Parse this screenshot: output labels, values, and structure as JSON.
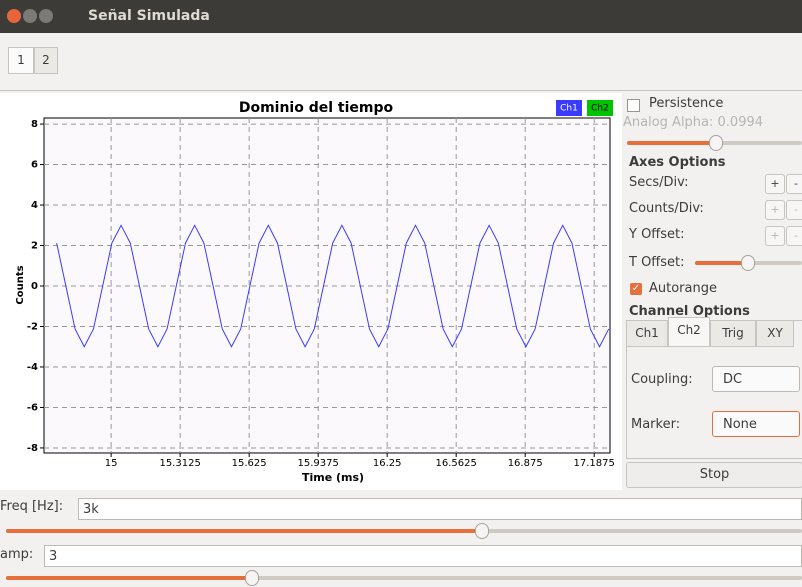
{
  "window": {
    "title": "Señal Simulada"
  },
  "tabs": [
    "1",
    "2"
  ],
  "chart_data": {
    "type": "line",
    "title": "Dominio del tiempo",
    "x_label": "Time (ms)",
    "y_label": "Counts",
    "x": [
      14.7533,
      14.795,
      14.8367,
      14.8783,
      14.92,
      14.9617,
      15.0033,
      15.045,
      15.0867,
      15.1283,
      15.17,
      15.2117,
      15.2533,
      15.295,
      15.3367,
      15.3783,
      15.42,
      15.4617,
      15.5033,
      15.545,
      15.5867,
      15.6283,
      15.67,
      15.7117,
      15.7533,
      15.795,
      15.8367,
      15.8783,
      15.92,
      15.9617,
      16.0033,
      16.045,
      16.0867,
      16.1283,
      16.17,
      16.2117,
      16.2533,
      16.295,
      16.3367,
      16.3783,
      16.42,
      16.4617,
      16.5033,
      16.545,
      16.5867,
      16.6283,
      16.67,
      16.7117,
      16.7533,
      16.795,
      16.8367,
      16.8783,
      16.92,
      16.9617,
      17.0033,
      17.045,
      17.0867,
      17.1283,
      17.17,
      17.2117,
      17.2533
    ],
    "series": [
      {
        "name": "Ch1",
        "color": "#3b3bff",
        "values": [
          2.12,
          0,
          -2.12,
          -3,
          -2.12,
          0,
          2.12,
          3,
          2.12,
          0,
          -2.12,
          -3,
          -2.12,
          0,
          2.12,
          3,
          2.12,
          0,
          -2.12,
          -3,
          -2.12,
          0,
          2.12,
          3,
          2.12,
          0,
          -2.12,
          -3,
          -2.12,
          0,
          2.12,
          3,
          2.12,
          0,
          -2.12,
          -3,
          -2.12,
          0,
          2.12,
          3,
          2.12,
          0,
          -2.12,
          -3,
          -2.12,
          0,
          2.12,
          3,
          2.12,
          0,
          -2.12,
          -3,
          -2.12,
          0,
          2.12,
          3,
          2.12,
          0,
          -2.12,
          -3,
          -2.12
        ]
      }
    ],
    "legend": [
      {
        "name": "Ch1",
        "color": "#3b3bff"
      },
      {
        "name": "Ch2",
        "color": "#00c400"
      }
    ],
    "xlim": [
      14.696,
      17.259
    ],
    "ylim": [
      -8.25,
      8.3
    ],
    "xticks": [
      15,
      15.3125,
      15.625,
      15.9375,
      16.25,
      16.5625,
      16.875,
      17.1875
    ],
    "yticks": [
      -8,
      -6,
      -4,
      -2,
      0,
      2,
      4,
      6,
      8
    ],
    "grid": true
  },
  "panel": {
    "persistence": "Persistence",
    "analog_alpha": "Analog Alpha: 0.0994",
    "axes_options": "Axes Options",
    "secs_div": "Secs/Div:",
    "counts_div": "Counts/Div:",
    "y_offset": "Y Offset:",
    "t_offset": "T Offset:",
    "autorange": "Autorange",
    "channel_options": "Channel Options",
    "channel_tabs": [
      "Ch1",
      "Ch2",
      "Trig",
      "XY"
    ],
    "coupling": "Coupling:",
    "coupling_value": "DC",
    "marker": "Marker:",
    "marker_value": "None",
    "stop": "Stop",
    "plus": "+",
    "minus": "-"
  },
  "controls": {
    "freq_label": "Freq [Hz]:",
    "freq_value": "3k",
    "amp_label": "amp:",
    "amp_value": "3"
  }
}
